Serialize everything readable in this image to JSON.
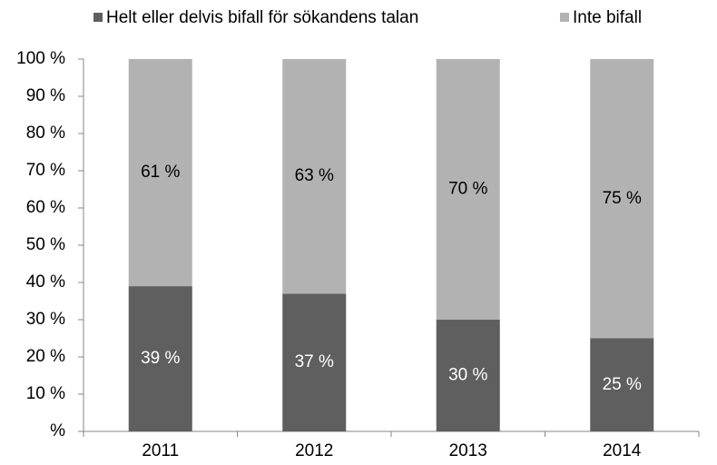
{
  "chart_data": {
    "type": "stacked_bar",
    "categories": [
      "2011",
      "2012",
      "2013",
      "2014"
    ],
    "series": [
      {
        "name": "Helt eller delvis bifall för sökandens talan",
        "color": "#5f5f5f",
        "values": [
          39,
          37,
          30,
          25
        ],
        "value_labels": [
          "39 %",
          "37 %",
          "30 %",
          "25 %"
        ]
      },
      {
        "name": "Inte bifall",
        "color": "#b2b2b2",
        "values": [
          61,
          63,
          70,
          75
        ],
        "value_labels": [
          "61 %",
          "63 %",
          "70 %",
          "75 %"
        ]
      }
    ],
    "ylim": [
      0,
      100
    ],
    "yticks": [
      {
        "value": 0,
        "label": "%"
      },
      {
        "value": 10,
        "label": "10 %"
      },
      {
        "value": 20,
        "label": "20 %"
      },
      {
        "value": 30,
        "label": "30 %"
      },
      {
        "value": 40,
        "label": "40 %"
      },
      {
        "value": 50,
        "label": "50 %"
      },
      {
        "value": 60,
        "label": "60 %"
      },
      {
        "value": 70,
        "label": "70 %"
      },
      {
        "value": 80,
        "label": "80 %"
      },
      {
        "value": 90,
        "label": "90 %"
      },
      {
        "value": 100,
        "label": "100 %"
      }
    ],
    "legend": "top",
    "grid": false
  }
}
